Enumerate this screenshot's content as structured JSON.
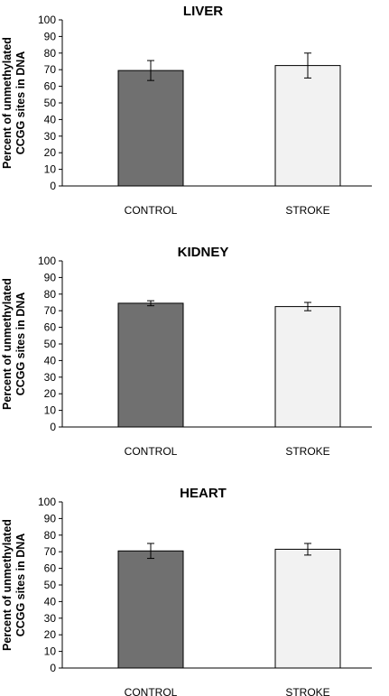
{
  "chart_data": [
    {
      "type": "bar",
      "title": "LIVER",
      "ylabel_lines": [
        "Percent of unmethylated",
        "CCGG sites in DNA"
      ],
      "categories": [
        "CONTROL",
        "STROKE"
      ],
      "values": [
        69.5,
        72.5
      ],
      "errors": [
        6,
        7.5
      ],
      "colors": [
        "#707070",
        "#f2f2f2"
      ],
      "ylim": [
        0,
        100
      ],
      "yticks": [
        0,
        10,
        20,
        30,
        40,
        50,
        60,
        70,
        80,
        90,
        100
      ],
      "grid": false,
      "legend": false
    },
    {
      "type": "bar",
      "title": "KIDNEY",
      "ylabel_lines": [
        "Percent of unmethylated",
        "CCGG sites in DNA"
      ],
      "categories": [
        "CONTROL",
        "STROKE"
      ],
      "values": [
        74.5,
        72.5
      ],
      "errors": [
        1.5,
        2.5
      ],
      "colors": [
        "#707070",
        "#f2f2f2"
      ],
      "ylim": [
        0,
        100
      ],
      "yticks": [
        0,
        10,
        20,
        30,
        40,
        50,
        60,
        70,
        80,
        90,
        100
      ],
      "grid": false,
      "legend": false
    },
    {
      "type": "bar",
      "title": "HEART",
      "ylabel_lines": [
        "Percent of unmethylated",
        "CCGG sites in DNA"
      ],
      "categories": [
        "CONTROL",
        "STROKE"
      ],
      "values": [
        70.5,
        71.5
      ],
      "errors": [
        4.5,
        3.5
      ],
      "colors": [
        "#707070",
        "#f2f2f2"
      ],
      "ylim": [
        0,
        100
      ],
      "yticks": [
        0,
        10,
        20,
        30,
        40,
        50,
        60,
        70,
        80,
        90,
        100
      ],
      "grid": false,
      "legend": false
    }
  ]
}
